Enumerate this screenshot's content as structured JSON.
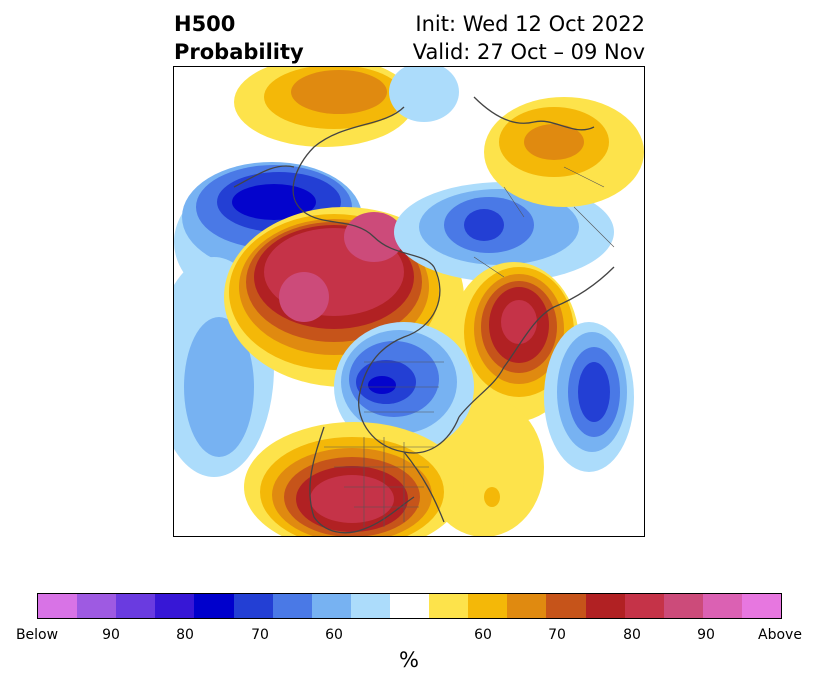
{
  "header": {
    "title_line1": "H500",
    "title_line2": "Probability",
    "init_text": "Init: Wed 12 Oct 2022",
    "valid_text": "Valid: 27 Oct – 09 Nov"
  },
  "map": {
    "projection": "north-polar-stereographic",
    "colors": {
      "blue_light": "#acdcfb",
      "blue_1": "#77b2f2",
      "blue_2": "#4a79e6",
      "blue_3": "#233fd4",
      "blue_4": "#0404cc",
      "orange_1": "#fde34b",
      "orange_2": "#f4b808",
      "orange_3": "#e08a10",
      "orange_4": "#c6541a",
      "red_1": "#b12123",
      "red_2": "#c53348",
      "red_3": "#cc4b7a"
    }
  },
  "colorbar": {
    "colors": [
      "#d873e6",
      "#9e5ae2",
      "#6a3be0",
      "#3717d6",
      "#0000cc",
      "#233fd4",
      "#4a79e6",
      "#77b2f2",
      "#acdcfb",
      "#ffffff",
      "#fde34b",
      "#f4b808",
      "#e08a10",
      "#c6541a",
      "#b12123",
      "#c53348",
      "#cc4b7a",
      "#db61b3",
      "#e777e0"
    ],
    "tick_labels": [
      "Below",
      "90",
      "80",
      "70",
      "60",
      "60",
      "70",
      "80",
      "90",
      "Above"
    ],
    "unit": "%"
  }
}
